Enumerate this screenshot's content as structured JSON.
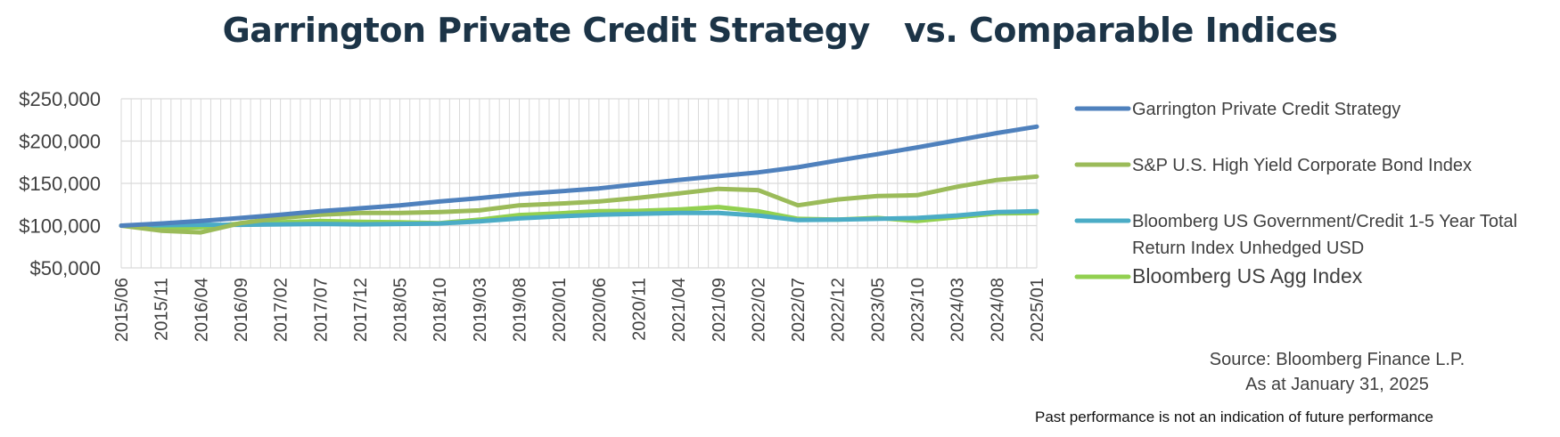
{
  "chart_data": {
    "type": "line",
    "title": "Garrington Private Credit Strategy   vs. Comparable Indices",
    "xlabel": "",
    "ylabel": "",
    "ylim": [
      50000,
      250000
    ],
    "y_ticks": [
      "$250,000",
      "$200,000",
      "$150,000",
      "$100,000",
      "$50,000"
    ],
    "y_tick_values": [
      250000,
      200000,
      150000,
      100000,
      50000
    ],
    "grid": true,
    "legend_position": "right",
    "x_tick_labels": [
      "2015/06",
      "2015/11",
      "2016/04",
      "2016/09",
      "2017/02",
      "2017/07",
      "2017/12",
      "2018/05",
      "2018/10",
      "2019/03",
      "2019/08",
      "2020/01",
      "2020/06",
      "2020/11",
      "2021/04",
      "2021/09",
      "2022/02",
      "2022/07",
      "2022/12",
      "2023/05",
      "2023/10",
      "2024/03",
      "2024/08",
      "2025/01"
    ],
    "series": [
      {
        "name": "Garrington Private Credit Strategy",
        "color": "#4f81bd",
        "values": [
          100000,
          102500,
          105500,
          109000,
          113000,
          117000,
          120500,
          124000,
          128500,
          132500,
          137000,
          140500,
          144000,
          149000,
          154000,
          158500,
          163000,
          169000,
          177000,
          184500,
          192500,
          201000,
          209500,
          217000
        ]
      },
      {
        "name": "S&P U.S. High Yield Corporate Bond Index",
        "color": "#9bbb59",
        "values": [
          100000,
          94000,
          92000,
          103000,
          109000,
          113000,
          115000,
          115000,
          116000,
          118000,
          124000,
          126000,
          128500,
          133000,
          138000,
          143500,
          142000,
          124000,
          131000,
          135000,
          136000,
          146000,
          154000,
          158000
        ]
      },
      {
        "name": "Bloomberg US Government/Credit 1-5 Year Total Return Index Unhedged USD",
        "color": "#4bacc6",
        "values": [
          100000,
          100500,
          101000,
          101000,
          101500,
          102000,
          101500,
          102000,
          102500,
          105000,
          108500,
          111000,
          113000,
          114000,
          115000,
          115000,
          112000,
          106500,
          107000,
          108000,
          109000,
          112000,
          116000,
          117000
        ]
      },
      {
        "name": "Bloomberg US Agg Index",
        "color": "#92d050",
        "values": [
          100000,
          97000,
          98000,
          102500,
          104000,
          105500,
          104500,
          104000,
          103000,
          107000,
          112500,
          114500,
          117000,
          117500,
          119000,
          122000,
          117000,
          108000,
          107000,
          109000,
          105500,
          110000,
          114500,
          115000
        ]
      }
    ]
  },
  "legend": {
    "items": [
      {
        "lines": [
          "Garrington Private Credit Strategy"
        ]
      },
      {
        "lines": [
          "S&P U.S. High Yield Corporate Bond Index"
        ]
      },
      {
        "lines": [
          "Bloomberg US Government/Credit 1-5 Year Total",
          "Return Index Unhedged USD"
        ]
      },
      {
        "lines": [
          "Bloomberg US Agg Index"
        ]
      }
    ]
  },
  "footer": {
    "source_line1": "Source: Bloomberg Finance L.P.",
    "source_line2": "As at January 31, 2025",
    "disclaimer": "Past performance is not an indication of future performance"
  }
}
